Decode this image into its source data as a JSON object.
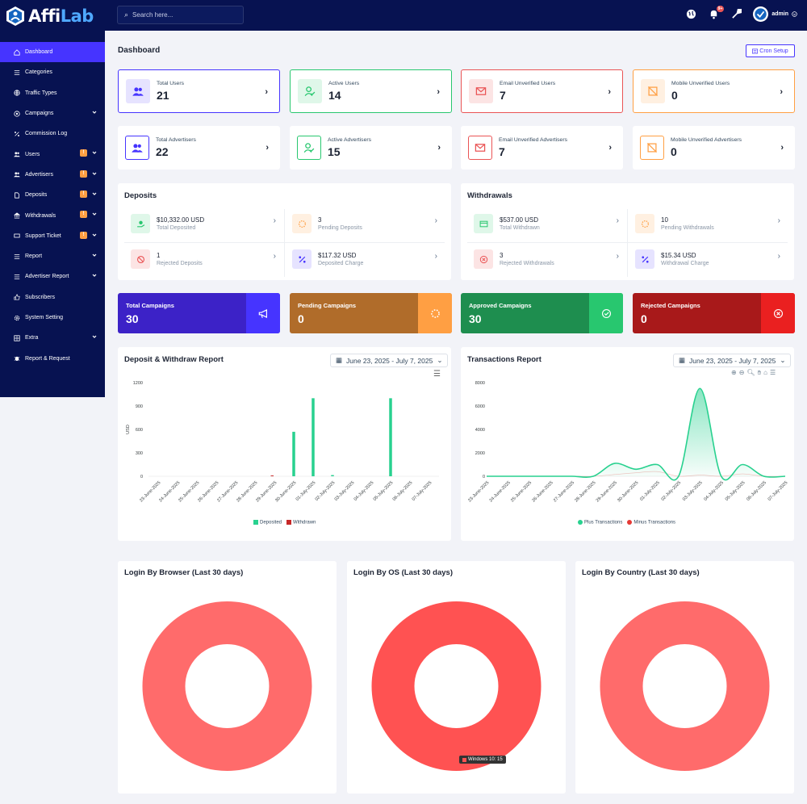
{
  "brand": {
    "name_part1": "Affi",
    "name_part2": "Lab"
  },
  "search": {
    "placeholder": "Search here..."
  },
  "topbar": {
    "notif_count": "9+",
    "user": "admin"
  },
  "sidebar": {
    "items": [
      {
        "label": "Dashboard",
        "icon": "home-icon",
        "active": true
      },
      {
        "label": "Categories",
        "icon": "list-icon"
      },
      {
        "label": "Traffic Types",
        "icon": "globe-icon"
      },
      {
        "label": "Campaigns",
        "icon": "target-icon",
        "dropdown": true
      },
      {
        "label": "Commission Log",
        "icon": "percent-icon"
      },
      {
        "label": "Users",
        "icon": "users-icon",
        "dropdown": true,
        "alert": true
      },
      {
        "label": "Advertisers",
        "icon": "users-icon",
        "dropdown": true,
        "alert": true
      },
      {
        "label": "Deposits",
        "icon": "file-icon",
        "dropdown": true,
        "alert": true
      },
      {
        "label": "Withdrawals",
        "icon": "bank-icon",
        "dropdown": true,
        "alert": true
      },
      {
        "label": "Support Ticket",
        "icon": "ticket-icon",
        "dropdown": true,
        "alert": true
      },
      {
        "label": "Report",
        "icon": "list-icon",
        "dropdown": true
      },
      {
        "label": "Advertiser Report",
        "icon": "list-icon",
        "dropdown": true
      },
      {
        "label": "Subscribers",
        "icon": "thumb-icon"
      },
      {
        "label": "System Setting",
        "icon": "gear-icon"
      },
      {
        "label": "Extra",
        "icon": "layers-icon",
        "dropdown": true
      },
      {
        "label": "Report & Request",
        "icon": "bug-icon"
      }
    ]
  },
  "page": {
    "title": "Dashboard",
    "cron_button": "Cron Setup"
  },
  "stats": [
    {
      "label": "Total Users",
      "value": "21",
      "color": "#4634ff",
      "bg": "#e6e3ff",
      "border": "#4634ff",
      "icon": "users-icon"
    },
    {
      "label": "Active Users",
      "value": "14",
      "color": "#28c76f",
      "bg": "#dff7e9",
      "border": "#28c76f",
      "icon": "user-check-icon"
    },
    {
      "label": "Email Unverified Users",
      "value": "7",
      "color": "#ea5455",
      "bg": "#fce4e4",
      "border": "#ea5455",
      "icon": "envelope-icon"
    },
    {
      "label": "Mobile Unverified Users",
      "value": "0",
      "color": "#ff9f43",
      "bg": "#fff0e1",
      "border": "#ff9f43",
      "icon": "mobile-off-icon"
    },
    {
      "label": "Total Advertisers",
      "value": "22",
      "color": "#4634ff",
      "bg": "#ffffff",
      "border": "",
      "icon": "users-icon"
    },
    {
      "label": "Active Advertisers",
      "value": "15",
      "color": "#28c76f",
      "bg": "#ffffff",
      "border": "",
      "icon": "user-check-icon"
    },
    {
      "label": "Email Unverified Advertisers",
      "value": "7",
      "color": "#ea5455",
      "bg": "#ffffff",
      "border": "",
      "icon": "envelope-icon"
    },
    {
      "label": "Mobile Unverified Advertisers",
      "value": "0",
      "color": "#ff9f43",
      "bg": "#ffffff",
      "border": "",
      "icon": "mobile-off-icon"
    }
  ],
  "deposits": {
    "title": "Deposits",
    "items": [
      {
        "value": "$10,332.00 USD",
        "label": "Total Deposited",
        "color": "#28c76f",
        "bg": "#dff7e9",
        "icon": "hand-money-icon"
      },
      {
        "value": "3",
        "label": "Pending Deposits",
        "color": "#ff9f43",
        "bg": "#fff0e1",
        "icon": "spinner-icon"
      },
      {
        "value": "1",
        "label": "Rejected Deposits",
        "color": "#ea5455",
        "bg": "#fce4e4",
        "icon": "ban-icon"
      },
      {
        "value": "$117.32 USD",
        "label": "Deposited Charge",
        "color": "#4634ff",
        "bg": "#e6e3ff",
        "icon": "percent-icon"
      }
    ]
  },
  "withdrawals": {
    "title": "Withdrawals",
    "items": [
      {
        "value": "$537.00 USD",
        "label": "Total Withdrawn",
        "color": "#28c76f",
        "bg": "#dff7e9",
        "icon": "card-icon"
      },
      {
        "value": "10",
        "label": "Pending Withdrawals",
        "color": "#ff9f43",
        "bg": "#fff0e1",
        "icon": "spinner-icon"
      },
      {
        "value": "3",
        "label": "Rejected Withdrawals",
        "color": "#ea5455",
        "bg": "#fce4e4",
        "icon": "x-circle-icon"
      },
      {
        "value": "$15.34 USD",
        "label": "Withdrawal Charge",
        "color": "#4634ff",
        "bg": "#e6e3ff",
        "icon": "percent-icon"
      }
    ]
  },
  "campaigns": [
    {
      "label": "Total Campaigns",
      "value": "30",
      "bg": "#3c22c7",
      "bg2": "#4634ff",
      "icon": "megaphone-icon"
    },
    {
      "label": "Pending Campaigns",
      "value": "0",
      "bg": "#b06c2a",
      "bg2": "#ff9f43",
      "icon": "spinner-icon"
    },
    {
      "label": "Approved Campaigns",
      "value": "30",
      "bg": "#1e8e4f",
      "bg2": "#28c76f",
      "icon": "check-circle-icon"
    },
    {
      "label": "Rejected Campaigns",
      "value": "0",
      "bg": "#a8191a",
      "bg2": "#ea2020",
      "icon": "x-circle-icon"
    }
  ],
  "deposit_report": {
    "title": "Deposit & Withdraw Report",
    "date_range": "June 23, 2025 - July 7, 2025"
  },
  "transactions_report": {
    "title": "Transactions Report",
    "date_range": "June 23, 2025 - July 7, 2025"
  },
  "login_browser": {
    "title": "Login By Browser (Last 30 days)"
  },
  "login_os": {
    "title": "Login By OS (Last 30 days)",
    "tooltip": "Windows 10: 15"
  },
  "login_country": {
    "title": "Login By Country (Last 30 days)"
  },
  "chart_data": [
    {
      "type": "bar",
      "categories": [
        "23-June-2025",
        "24-June-2025",
        "25-June-2025",
        "26-June-2025",
        "27-June-2025",
        "28-June-2025",
        "29-June-2025",
        "30-June-2025",
        "01-July-2025",
        "02-July-2025",
        "03-July-2025",
        "04-July-2025",
        "05-July-2025",
        "06-July-2025",
        "07-July-2025"
      ],
      "series": [
        {
          "name": "Deposited",
          "color": "#28d18f",
          "values": [
            0,
            0,
            0,
            0,
            0,
            0,
            0,
            570,
            1000,
            15,
            0,
            0,
            1000,
            0,
            0
          ]
        },
        {
          "name": "Withdrawn",
          "color": "#c62828",
          "values": [
            0,
            0,
            0,
            0,
            0,
            0,
            10,
            0,
            0,
            0,
            0,
            0,
            0,
            0,
            0
          ]
        }
      ],
      "ylabel": "USD",
      "yticks": [
        0,
        300,
        600,
        900,
        1200
      ],
      "ylim": [
        0,
        1200
      ]
    },
    {
      "type": "area",
      "categories": [
        "23-June-2025",
        "24-June-2025",
        "25-June-2025",
        "26-June-2025",
        "27-June-2025",
        "28-June-2025",
        "29-June-2025",
        "30-June-2025",
        "01-July-2025",
        "02-July-2025",
        "03-July-2025",
        "04-July-2025",
        "05-July-2025",
        "06-July-2025",
        "07-July-2025"
      ],
      "x_tick_labels": [
        "23-June-2025",
        "24-June-2025",
        "25-June-2025",
        "26-June-2025",
        "27-June-2025",
        "28-June-2025",
        "29-June-2025",
        "30-June-2025",
        "01-July-2025",
        "02-July-2025",
        "03-July-2025",
        "04-July-2025",
        "05-July-2025",
        "06-July-2025",
        "07-July-2025"
      ],
      "series": [
        {
          "name": "Plus Transactions",
          "color": "#28d18f",
          "values": [
            0,
            0,
            0,
            0,
            0,
            0,
            1100,
            600,
            1000,
            0,
            7500,
            0,
            1000,
            0,
            0
          ]
        },
        {
          "name": "Minus Transactions",
          "color": "#e53935",
          "values": [
            0,
            0,
            0,
            0,
            0,
            0,
            150,
            300,
            400,
            0,
            100,
            0,
            200,
            0,
            0
          ]
        }
      ],
      "yticks": [
        0,
        2000,
        4000,
        6000,
        8000
      ],
      "ylim": [
        0,
        8000
      ]
    },
    {
      "type": "pie",
      "title": "Login By Browser (Last 30 days)",
      "slices": [
        {
          "value": 1,
          "color": "#ff6b6b"
        }
      ]
    },
    {
      "type": "pie",
      "title": "Login By OS (Last 30 days)",
      "slices": [
        {
          "label": "Windows 10",
          "value": 15,
          "color": "#ff5252"
        }
      ]
    },
    {
      "type": "pie",
      "title": "Login By Country (Last 30 days)",
      "slices": [
        {
          "value": 1,
          "color": "#ff6b6b"
        }
      ]
    }
  ]
}
